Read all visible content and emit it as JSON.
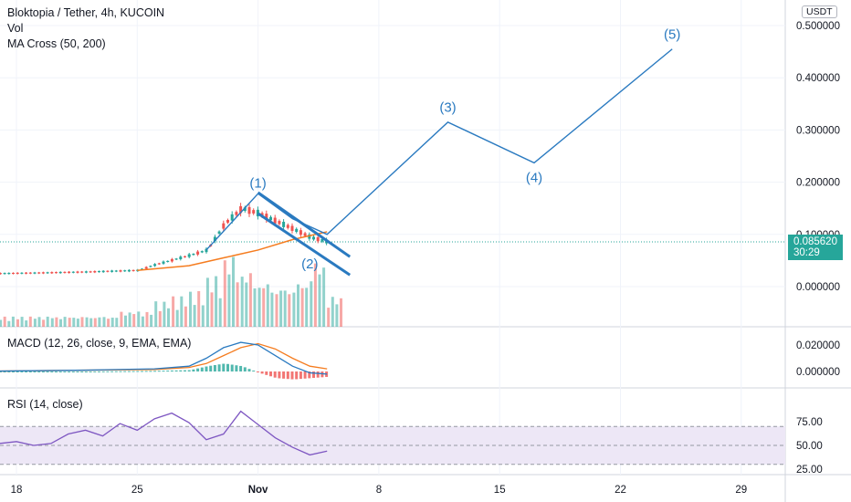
{
  "legend": {
    "symbol": "Bloktopia / Tether, 4h, KUCOIN",
    "vol": "Vol",
    "ma": "MA Cross (50, 200)",
    "macd": "MACD (12, 26, close, 9, EMA, EMA)",
    "rsi": "RSI (14, close)"
  },
  "unit_badge": "USDT",
  "last_price": {
    "value": "0.085620",
    "countdown": "30:29",
    "color": "#26a69a"
  },
  "colors": {
    "up": "#26a69a",
    "down": "#ef5350",
    "wave": "#2a7ac0",
    "ma_fast": "#f57c1f",
    "ma_slow": "#2a7ac0",
    "rsi_band": "#ede7f6",
    "rsi_line": "#7e57c2",
    "grid": "#f0f3fa",
    "axis_text": "#131722"
  },
  "chart_data": [
    {
      "type": "line",
      "title": "Bloktopia / Tether, 4h, KUCOIN",
      "x_tick_labels": [
        "18",
        "25",
        "Nov",
        "8",
        "15",
        "22",
        "29"
      ],
      "x_ticks": [
        "Oct 18",
        "Oct 25",
        "Nov 1",
        "Nov 8",
        "Nov 15",
        "Nov 22",
        "Nov 29"
      ],
      "ylim": [
        -0.06,
        0.53
      ],
      "y_tick_labels": [
        "0.000000",
        "0.100000",
        "0.200000",
        "0.300000",
        "0.400000",
        "0.500000"
      ],
      "y_ticks": [
        0,
        0.1,
        0.2,
        0.3,
        0.4,
        0.5
      ],
      "series": [
        {
          "name": "price_trend",
          "x": [
            "Oct 15",
            "Oct 19",
            "Oct 22",
            "Oct 25",
            "Oct 26",
            "Oct 28",
            "Oct 29",
            "Oct 30",
            "Oct 31",
            "Nov 1",
            "Nov 2",
            "Nov 3",
            "Nov 4",
            "Nov 5"
          ],
          "y": [
            0.024,
            0.026,
            0.028,
            0.031,
            0.042,
            0.06,
            0.07,
            0.12,
            0.15,
            0.14,
            0.125,
            0.11,
            0.094,
            0.0856
          ]
        },
        {
          "name": "MA 50",
          "x": [
            "Oct 25",
            "Oct 28",
            "Oct 30",
            "Nov 1",
            "Nov 3",
            "Nov 5"
          ],
          "y": [
            0.031,
            0.04,
            0.055,
            0.07,
            0.09,
            0.105
          ]
        }
      ],
      "projection": {
        "x": [
          "Oct 29",
          "Nov 1",
          "Nov 3",
          "Nov 5",
          "Nov 12",
          "Nov 17",
          "Nov 25"
        ],
        "y": [
          0.07,
          0.178,
          0.13,
          0.1,
          0.315,
          0.237,
          0.455
        ],
        "labels": [
          {
            "text": "(1)",
            "x": "Nov 1",
            "y": 0.19
          },
          {
            "text": "(2)",
            "x": "Nov 4",
            "y": 0.035
          },
          {
            "text": "(3)",
            "x": "Nov 12",
            "y": 0.335
          },
          {
            "text": "(4)",
            "x": "Nov 17",
            "y": 0.2
          },
          {
            "text": "(5)",
            "x": "Nov 25",
            "y": 0.475
          }
        ]
      },
      "channel": {
        "upper": {
          "x": [
            "Nov 1",
            "Nov 5"
          ],
          "y": [
            0.18,
            0.08
          ]
        },
        "lower": {
          "x": [
            "Nov 1",
            "Nov 5"
          ],
          "y": [
            0.14,
            0.045
          ]
        }
      }
    },
    {
      "type": "bar",
      "title": "Vol",
      "x": [
        "Oct 15",
        "Oct 16",
        "Oct 17",
        "Oct 18",
        "Oct 19",
        "Oct 20",
        "Oct 21",
        "Oct 22",
        "Oct 23",
        "Oct 24",
        "Oct 25",
        "Oct 26",
        "Oct 27",
        "Oct 28",
        "Oct 29",
        "Oct 30",
        "Oct 31",
        "Nov 1",
        "Nov 2",
        "Nov 3",
        "Nov 4",
        "Nov 5"
      ],
      "values": [
        3,
        2,
        2,
        2,
        2,
        2,
        2,
        2,
        2,
        3,
        3,
        5,
        6,
        7,
        10,
        14,
        11,
        9,
        8,
        9,
        13,
        6
      ]
    },
    {
      "type": "line",
      "title": "MACD (12, 26, close, 9, EMA, EMA)",
      "ylim": [
        -0.004,
        0.024
      ],
      "y_tick_labels": [
        "0.000000",
        "0.020000"
      ],
      "y_ticks": [
        0,
        0.02
      ],
      "series": [
        {
          "name": "MACD",
          "x": [
            "Oct 15",
            "Oct 22",
            "Oct 26",
            "Oct 28",
            "Oct 29",
            "Oct 30",
            "Oct 31",
            "Nov 1",
            "Nov 2",
            "Nov 3",
            "Nov 4",
            "Nov 5"
          ],
          "y": [
            0.0,
            0.001,
            0.002,
            0.004,
            0.01,
            0.018,
            0.022,
            0.02,
            0.012,
            0.004,
            -0.001,
            -0.002
          ]
        },
        {
          "name": "Signal",
          "x": [
            "Oct 15",
            "Oct 22",
            "Oct 26",
            "Oct 28",
            "Oct 29",
            "Oct 30",
            "Oct 31",
            "Nov 1",
            "Nov 2",
            "Nov 3",
            "Nov 4",
            "Nov 5"
          ],
          "y": [
            0.0,
            0.001,
            0.0015,
            0.003,
            0.006,
            0.012,
            0.018,
            0.021,
            0.017,
            0.01,
            0.004,
            0.002
          ]
        }
      ]
    },
    {
      "type": "line",
      "title": "RSI (14, close)",
      "ylim": [
        20,
        100
      ],
      "y_tick_labels": [
        "25.00",
        "50.00",
        "75.00"
      ],
      "y_ticks": [
        25,
        50,
        75
      ],
      "bands": [
        30,
        50,
        70
      ],
      "series": [
        {
          "name": "RSI",
          "x": [
            "Oct 15",
            "Oct 16",
            "Oct 17",
            "Oct 18",
            "Oct 19",
            "Oct 20",
            "Oct 21",
            "Oct 22",
            "Oct 23",
            "Oct 24",
            "Oct 25",
            "Oct 26",
            "Oct 27",
            "Oct 28",
            "Oct 29",
            "Oct 30",
            "Oct 31",
            "Nov 1",
            "Nov 2",
            "Nov 3",
            "Nov 4",
            "Nov 5"
          ],
          "y": [
            50,
            66,
            52,
            54,
            50,
            52,
            62,
            66,
            60,
            73,
            66,
            78,
            84,
            74,
            56,
            62,
            86,
            72,
            58,
            48,
            40,
            44
          ]
        }
      ]
    }
  ]
}
